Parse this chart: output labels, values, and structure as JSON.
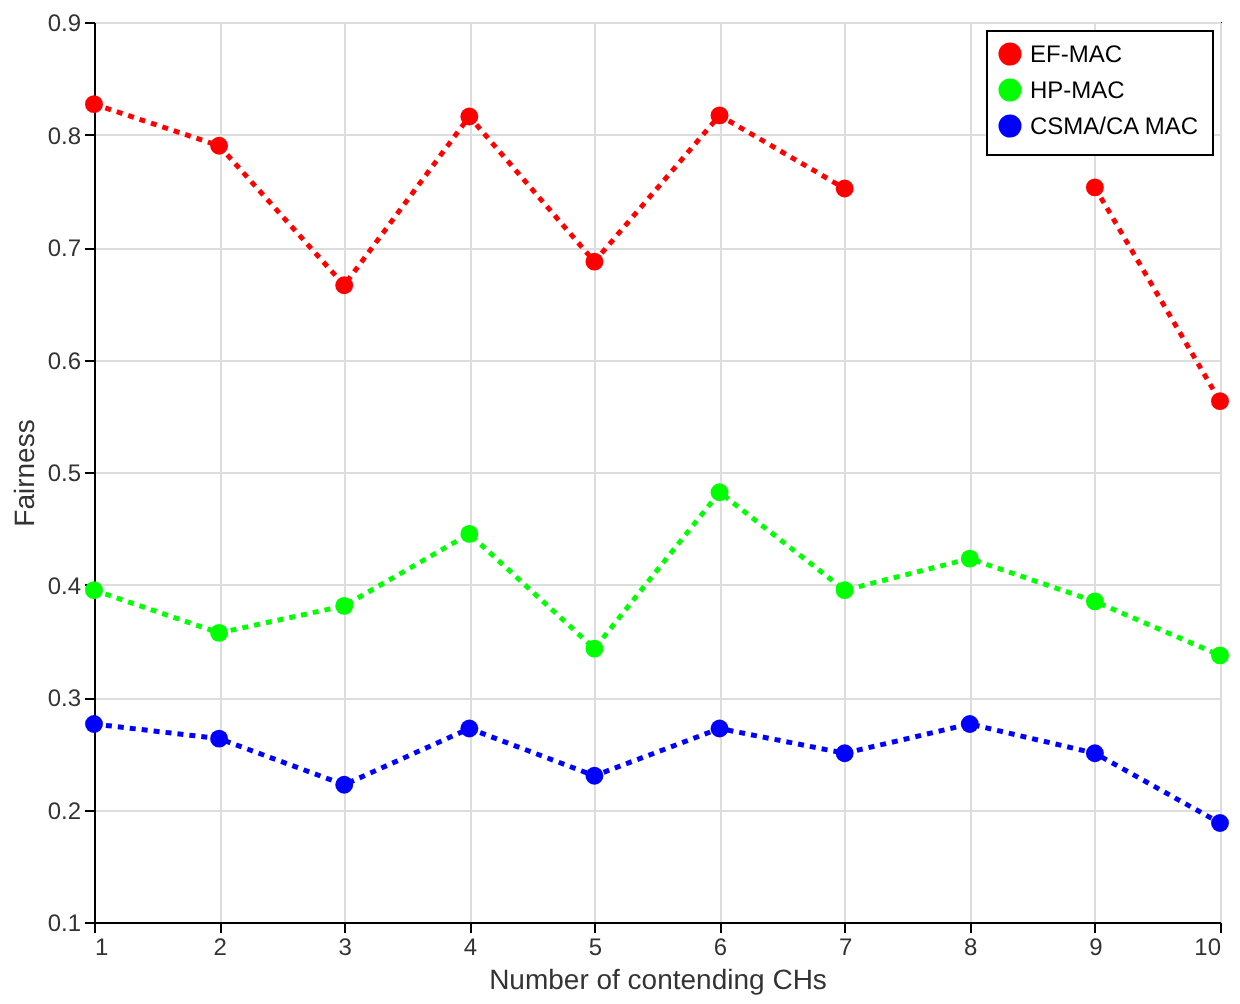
{
  "chart_data": {
    "type": "line",
    "xlabel": "Number of contending CHs",
    "ylabel": "Fairness",
    "x": [
      1,
      2,
      3,
      4,
      5,
      6,
      7,
      8,
      9,
      10
    ],
    "series": [
      {
        "name": "EF-MAC",
        "color": "#ff0000",
        "values": [
          0.827,
          0.79,
          0.666,
          0.816,
          0.687,
          0.817,
          0.752,
          null,
          0.753,
          0.563
        ]
      },
      {
        "name": "HP-MAC",
        "color": "#00ff00",
        "values": [
          0.395,
          0.357,
          0.381,
          0.445,
          0.343,
          0.482,
          0.395,
          0.423,
          0.385,
          0.337
        ]
      },
      {
        "name": "CSMA/CA MAC",
        "color": "#0000ff",
        "values": [
          0.276,
          0.263,
          0.222,
          0.272,
          0.23,
          0.272,
          0.25,
          0.276,
          0.25,
          0.188
        ]
      }
    ],
    "xlim": [
      1,
      10
    ],
    "xticks": [
      1,
      2,
      3,
      4,
      5,
      6,
      7,
      8,
      9,
      10
    ],
    "ylim": [
      0.1,
      0.9
    ],
    "yticks": [
      0.1,
      0.2,
      0.3,
      0.4,
      0.5,
      0.6,
      0.7,
      0.8,
      0.9
    ],
    "grid": true,
    "legend": "top right",
    "marker": "circle",
    "line_style": "dotted"
  }
}
